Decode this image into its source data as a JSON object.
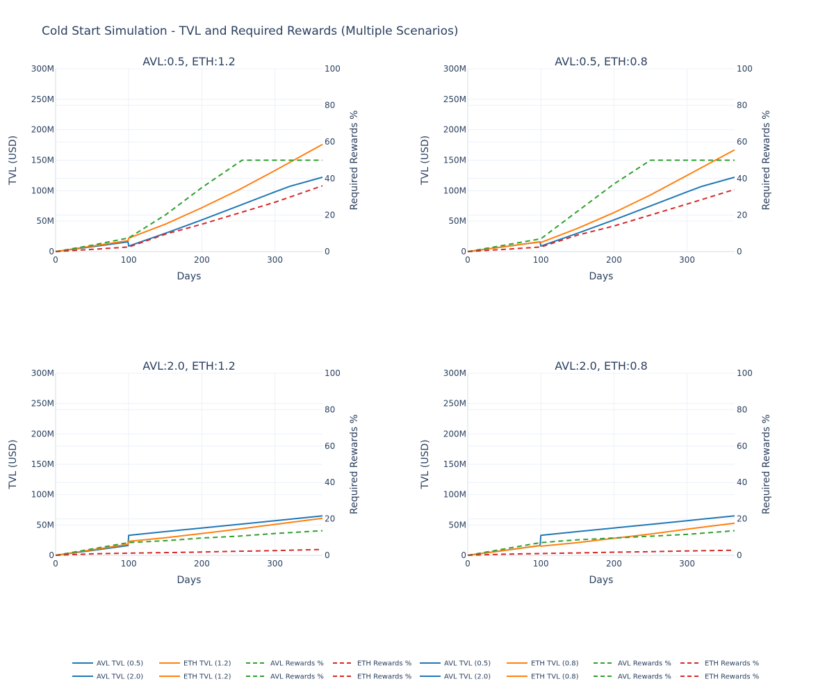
{
  "figure_title": "Cold Start Simulation - TVL and Required Rewards (Multiple Scenarios)",
  "colors": {
    "avl_tvl": "#1f77b4",
    "eth_tvl": "#ff7f0e",
    "avl_rewards": "#2ca02c",
    "eth_rewards": "#d62728",
    "grid": "#ebf0f8",
    "text": "#2a3f5f"
  },
  "legend": [
    {
      "label": "AVL TVL (0.5)",
      "color": "#1f77b4",
      "dash": false
    },
    {
      "label": "ETH TVL (1.2)",
      "color": "#ff7f0e",
      "dash": false
    },
    {
      "label": "AVL Rewards %",
      "color": "#2ca02c",
      "dash": true
    },
    {
      "label": "ETH Rewards %",
      "color": "#d62728",
      "dash": true
    },
    {
      "label": "AVL TVL (0.5)",
      "color": "#1f77b4",
      "dash": false
    },
    {
      "label": "ETH TVL (0.8)",
      "color": "#ff7f0e",
      "dash": false
    },
    {
      "label": "AVL Rewards %",
      "color": "#2ca02c",
      "dash": true
    },
    {
      "label": "ETH Rewards %",
      "color": "#d62728",
      "dash": true
    },
    {
      "label": "AVL TVL (2.0)",
      "color": "#1f77b4",
      "dash": false
    },
    {
      "label": "ETH TVL (1.2)",
      "color": "#ff7f0e",
      "dash": false
    },
    {
      "label": "AVL Rewards %",
      "color": "#2ca02c",
      "dash": true
    },
    {
      "label": "ETH Rewards %",
      "color": "#d62728",
      "dash": true
    },
    {
      "label": "AVL TVL (2.0)",
      "color": "#1f77b4",
      "dash": false
    },
    {
      "label": "ETH TVL (0.8)",
      "color": "#ff7f0e",
      "dash": false
    },
    {
      "label": "AVL Rewards %",
      "color": "#2ca02c",
      "dash": true
    },
    {
      "label": "ETH Rewards %",
      "color": "#d62728",
      "dash": true
    }
  ],
  "chart_data": [
    {
      "type": "line",
      "title": "AVL:0.5, ETH:1.2",
      "xlabel": "Days",
      "ylabel": "TVL (USD)",
      "y2label": "Required Rewards %",
      "xlim": [
        0,
        365
      ],
      "ylim": [
        0,
        300000000
      ],
      "y2lim": [
        0,
        100
      ],
      "xticks": [
        0,
        100,
        200,
        300
      ],
      "xtick_labels": [
        "0",
        "100",
        "200",
        "300"
      ],
      "yticks": [
        0,
        50000000,
        100000000,
        150000000,
        200000000,
        250000000,
        300000000
      ],
      "ytick_labels": [
        "0",
        "50M",
        "100M",
        "150M",
        "200M",
        "250M",
        "300M"
      ],
      "y2ticks": [
        0,
        20,
        40,
        60,
        80,
        100
      ],
      "y2tick_labels": [
        "0",
        "20",
        "40",
        "60",
        "80",
        "100"
      ],
      "series": [
        {
          "name": "AVL TVL (0.5)",
          "axis": "y",
          "color": "#1f77b4",
          "dash": false,
          "x": [
            0,
            50,
            99,
            100,
            150,
            200,
            250,
            300,
            320,
            365
          ],
          "y": [
            0,
            8000000,
            16000000,
            9000000,
            30000000,
            52000000,
            75000000,
            98000000,
            107000000,
            122000000
          ]
        },
        {
          "name": "ETH TVL (1.2)",
          "axis": "y",
          "color": "#ff7f0e",
          "dash": false,
          "x": [
            0,
            50,
            99,
            100,
            150,
            200,
            250,
            300,
            365
          ],
          "y": [
            0,
            9000000,
            18000000,
            22000000,
            45000000,
            72000000,
            101000000,
            133000000,
            176000000
          ]
        },
        {
          "name": "AVL Rewards %",
          "axis": "y2",
          "color": "#2ca02c",
          "dash": true,
          "x": [
            0,
            50,
            100,
            150,
            200,
            255,
            300,
            365
          ],
          "y": [
            0,
            3.5,
            7.5,
            20,
            35,
            50,
            50,
            50
          ]
        },
        {
          "name": "ETH Rewards %",
          "axis": "y2",
          "color": "#d62728",
          "dash": true,
          "x": [
            0,
            50,
            100,
            150,
            200,
            250,
            300,
            365
          ],
          "y": [
            0,
            1.2,
            2.5,
            9.5,
            15,
            21,
            27,
            36
          ]
        }
      ]
    },
    {
      "type": "line",
      "title": "AVL:0.5, ETH:0.8",
      "xlabel": "Days",
      "ylabel": "TVL (USD)",
      "y2label": "Required Rewards %",
      "xlim": [
        0,
        365
      ],
      "ylim": [
        0,
        300000000
      ],
      "y2lim": [
        0,
        100
      ],
      "xticks": [
        0,
        100,
        200,
        300
      ],
      "xtick_labels": [
        "0",
        "100",
        "200",
        "300"
      ],
      "yticks": [
        0,
        50000000,
        100000000,
        150000000,
        200000000,
        250000000,
        300000000
      ],
      "ytick_labels": [
        "0",
        "50M",
        "100M",
        "150M",
        "200M",
        "250M",
        "300M"
      ],
      "y2ticks": [
        0,
        20,
        40,
        60,
        80,
        100
      ],
      "y2tick_labels": [
        "0",
        "20",
        "40",
        "60",
        "80",
        "100"
      ],
      "series": [
        {
          "name": "AVL TVL (0.5)",
          "axis": "y",
          "color": "#1f77b4",
          "dash": false,
          "x": [
            0,
            50,
            99,
            100,
            150,
            200,
            250,
            300,
            320,
            365
          ],
          "y": [
            0,
            8000000,
            16000000,
            9000000,
            30000000,
            52000000,
            75000000,
            98000000,
            107000000,
            122000000
          ]
        },
        {
          "name": "ETH TVL (0.8)",
          "axis": "y",
          "color": "#ff7f0e",
          "dash": false,
          "x": [
            0,
            50,
            99,
            100,
            150,
            200,
            250,
            300,
            365
          ],
          "y": [
            0,
            8000000,
            16000000,
            15000000,
            38000000,
            64000000,
            93000000,
            125000000,
            167000000
          ]
        },
        {
          "name": "AVL Rewards %",
          "axis": "y2",
          "color": "#2ca02c",
          "dash": true,
          "x": [
            0,
            50,
            100,
            150,
            200,
            250,
            300,
            365
          ],
          "y": [
            0,
            3.5,
            7,
            22,
            37,
            50,
            50,
            50
          ]
        },
        {
          "name": "ETH Rewards %",
          "axis": "y2",
          "color": "#d62728",
          "dash": true,
          "x": [
            0,
            50,
            100,
            150,
            200,
            250,
            300,
            365
          ],
          "y": [
            0,
            1.2,
            2.5,
            9,
            14,
            20,
            26,
            34
          ]
        }
      ]
    },
    {
      "type": "line",
      "title": "AVL:2.0, ETH:1.2",
      "xlabel": "Days",
      "ylabel": "TVL (USD)",
      "y2label": "Required Rewards %",
      "xlim": [
        0,
        365
      ],
      "ylim": [
        0,
        300000000
      ],
      "y2lim": [
        0,
        100
      ],
      "xticks": [
        0,
        100,
        200,
        300
      ],
      "xtick_labels": [
        "0",
        "100",
        "200",
        "300"
      ],
      "yticks": [
        0,
        50000000,
        100000000,
        150000000,
        200000000,
        250000000,
        300000000
      ],
      "ytick_labels": [
        "0",
        "50M",
        "100M",
        "150M",
        "200M",
        "250M",
        "300M"
      ],
      "y2ticks": [
        0,
        20,
        40,
        60,
        80,
        100
      ],
      "y2tick_labels": [
        "0",
        "20",
        "40",
        "60",
        "80",
        "100"
      ],
      "series": [
        {
          "name": "AVL TVL (2.0)",
          "axis": "y",
          "color": "#1f77b4",
          "dash": false,
          "x": [
            0,
            50,
            99,
            100,
            150,
            200,
            250,
            300,
            365
          ],
          "y": [
            0,
            8000000,
            16000000,
            33000000,
            39000000,
            45000000,
            51000000,
            57000000,
            65000000
          ]
        },
        {
          "name": "ETH TVL (1.2)",
          "axis": "y",
          "color": "#ff7f0e",
          "dash": false,
          "x": [
            0,
            50,
            99,
            100,
            150,
            200,
            250,
            300,
            365
          ],
          "y": [
            0,
            9000000,
            18000000,
            23000000,
            29000000,
            36000000,
            43000000,
            51000000,
            61000000
          ]
        },
        {
          "name": "AVL Rewards %",
          "axis": "y2",
          "color": "#2ca02c",
          "dash": true,
          "x": [
            0,
            50,
            100,
            150,
            200,
            250,
            300,
            365
          ],
          "y": [
            0,
            3.5,
            7,
            8,
            9.5,
            10.5,
            12,
            13.5
          ]
        },
        {
          "name": "ETH Rewards %",
          "axis": "y2",
          "color": "#d62728",
          "dash": true,
          "x": [
            0,
            50,
            100,
            150,
            200,
            250,
            300,
            365
          ],
          "y": [
            0,
            0.8,
            1.2,
            1.5,
            1.8,
            2.2,
            2.6,
            3.2
          ]
        }
      ]
    },
    {
      "type": "line",
      "title": "AVL:2.0, ETH:0.8",
      "xlabel": "Days",
      "ylabel": "TVL (USD)",
      "y2label": "Required Rewards %",
      "xlim": [
        0,
        365
      ],
      "ylim": [
        0,
        300000000
      ],
      "y2lim": [
        0,
        100
      ],
      "xticks": [
        0,
        100,
        200,
        300
      ],
      "xtick_labels": [
        "0",
        "100",
        "200",
        "300"
      ],
      "yticks": [
        0,
        50000000,
        100000000,
        150000000,
        200000000,
        250000000,
        300000000
      ],
      "ytick_labels": [
        "0",
        "50M",
        "100M",
        "150M",
        "200M",
        "250M",
        "300M"
      ],
      "y2ticks": [
        0,
        20,
        40,
        60,
        80,
        100
      ],
      "y2tick_labels": [
        "0",
        "20",
        "40",
        "60",
        "80",
        "100"
      ],
      "series": [
        {
          "name": "AVL TVL (2.0)",
          "axis": "y",
          "color": "#1f77b4",
          "dash": false,
          "x": [
            0,
            50,
            99,
            100,
            150,
            200,
            250,
            300,
            365
          ],
          "y": [
            0,
            8000000,
            16000000,
            33000000,
            39000000,
            45000000,
            51000000,
            57000000,
            65000000
          ]
        },
        {
          "name": "ETH TVL (0.8)",
          "axis": "y",
          "color": "#ff7f0e",
          "dash": false,
          "x": [
            0,
            50,
            99,
            100,
            150,
            200,
            250,
            300,
            365
          ],
          "y": [
            0,
            8000000,
            16000000,
            15000000,
            21000000,
            28000000,
            35000000,
            43000000,
            53000000
          ]
        },
        {
          "name": "AVL Rewards %",
          "axis": "y2",
          "color": "#2ca02c",
          "dash": true,
          "x": [
            0,
            50,
            100,
            150,
            200,
            250,
            300,
            365
          ],
          "y": [
            0,
            3.5,
            7,
            8.5,
            9.5,
            10.5,
            11.5,
            13.5
          ]
        },
        {
          "name": "ETH Rewards %",
          "axis": "y2",
          "color": "#d62728",
          "dash": true,
          "x": [
            0,
            50,
            100,
            150,
            200,
            250,
            300,
            365
          ],
          "y": [
            0,
            0.6,
            1,
            1.3,
            1.7,
            2,
            2.4,
            2.8
          ]
        }
      ]
    }
  ]
}
